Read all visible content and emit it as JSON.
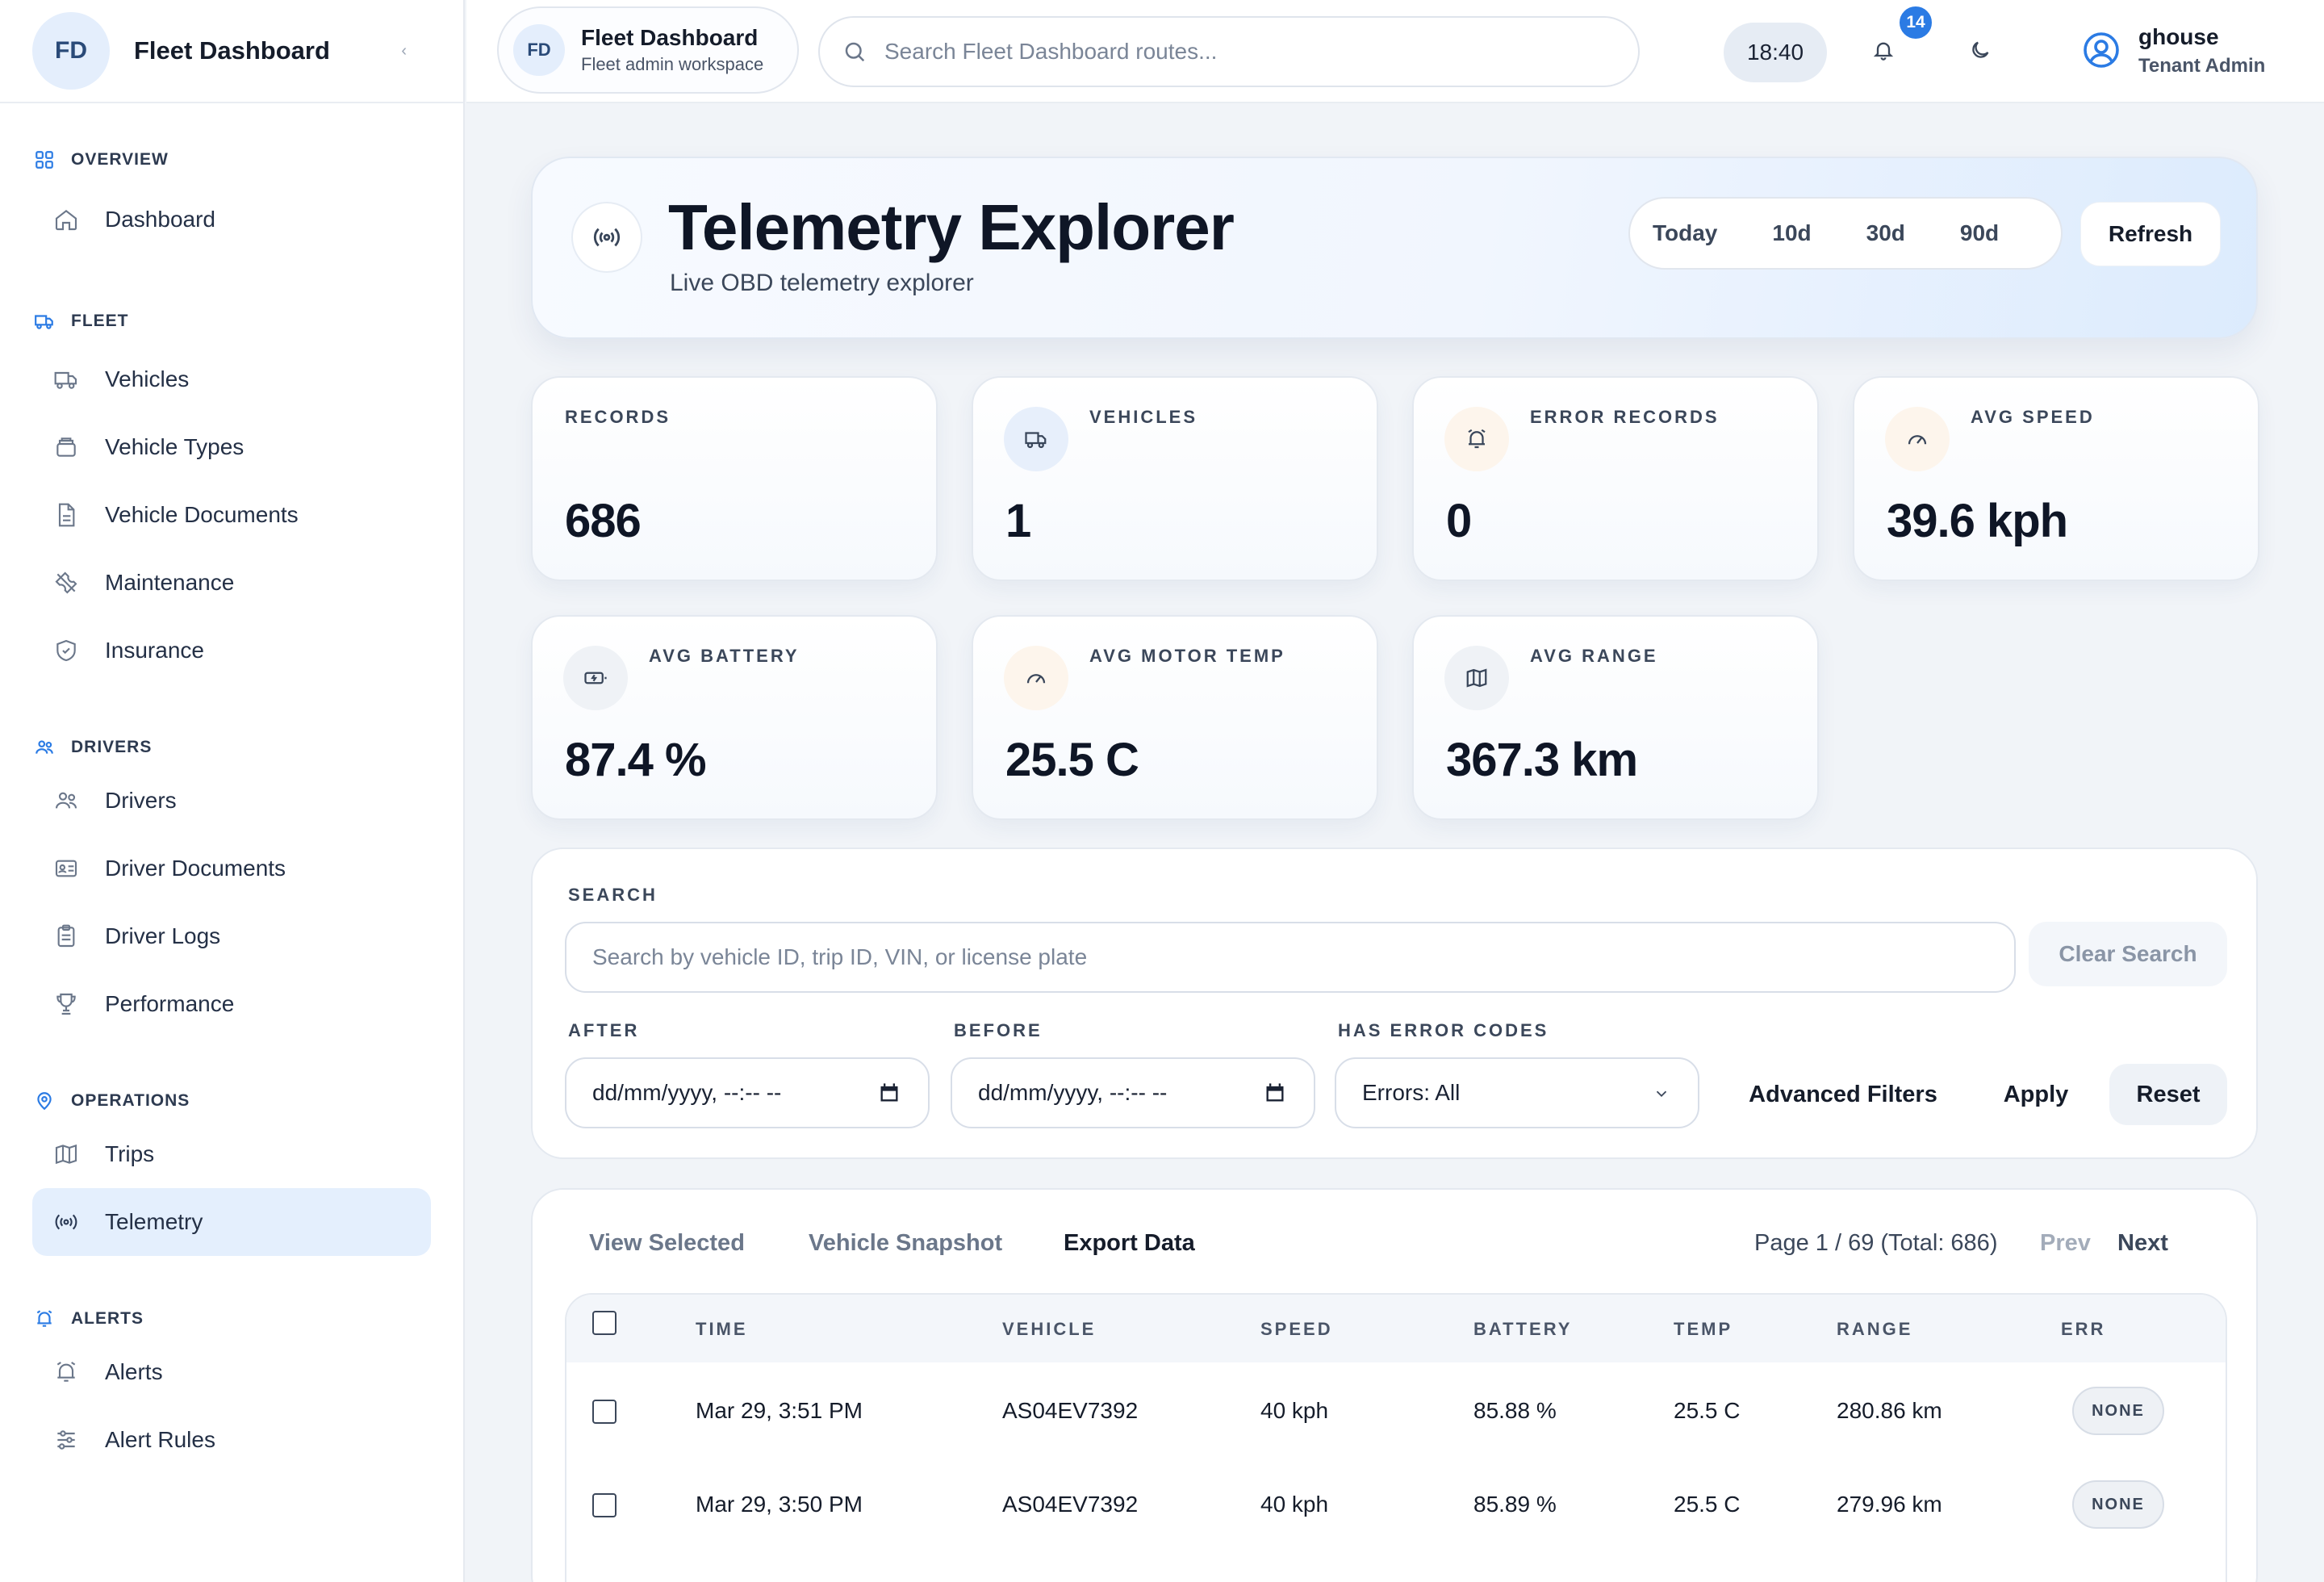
{
  "sidebar": {
    "logo": "FD",
    "title": "Fleet Dashboard",
    "collapse_icon": "chevron-left-icon",
    "sections": {
      "overview": "OVERVIEW",
      "fleet": "FLEET",
      "drivers": "DRIVERS",
      "operations": "OPERATIONS",
      "alerts": "ALERTS"
    },
    "items": {
      "dashboard": "Dashboard",
      "vehicles": "Vehicles",
      "vehicle_types": "Vehicle Types",
      "vehicle_documents": "Vehicle Documents",
      "maintenance": "Maintenance",
      "insurance": "Insurance",
      "drivers": "Drivers",
      "driver_documents": "Driver Documents",
      "driver_logs": "Driver Logs",
      "performance": "Performance",
      "trips": "Trips",
      "telemetry": "Telemetry",
      "alerts": "Alerts",
      "alert_rules": "Alert Rules"
    },
    "active": "telemetry"
  },
  "topbar": {
    "workspace_logo": "FD",
    "workspace_name": "Fleet Dashboard",
    "workspace_sub": "Fleet admin workspace",
    "search_placeholder": "Search Fleet Dashboard routes...",
    "clock": "18:40",
    "notification_count": "14",
    "user_name": "ghouse",
    "user_role": "Tenant Admin"
  },
  "hero": {
    "title": "Telemetry Explorer",
    "subtitle": "Live OBD telemetry explorer",
    "ranges": [
      "Today",
      "10d",
      "30d",
      "90d"
    ],
    "refresh_label": "Refresh"
  },
  "stats": {
    "records": {
      "label": "RECORDS",
      "value": "686"
    },
    "vehicles": {
      "label": "VEHICLES",
      "value": "1"
    },
    "error_records": {
      "label": "ERROR RECORDS",
      "value": "0"
    },
    "avg_speed": {
      "label": "AVG SPEED",
      "value": "39.6 kph"
    },
    "avg_battery": {
      "label": "AVG BATTERY",
      "value": "87.4 %"
    },
    "avg_motor_temp": {
      "label": "AVG MOTOR TEMP",
      "value": "25.5 C"
    },
    "avg_range": {
      "label": "AVG RANGE",
      "value": "367.3 km"
    }
  },
  "search_panel": {
    "search_label": "SEARCH",
    "search_placeholder": "Search by vehicle ID, trip ID, VIN, or license plate",
    "clear_label": "Clear Search",
    "after_label": "AFTER",
    "after_value": "dd/mm/yyyy, --:-- --",
    "before_label": "BEFORE",
    "before_value": "dd/mm/yyyy, --:-- --",
    "errors_label": "HAS ERROR CODES",
    "errors_value": "Errors: All",
    "advanced_label": "Advanced Filters",
    "apply_label": "Apply",
    "reset_label": "Reset"
  },
  "table": {
    "tabs": {
      "view_selected": "View Selected",
      "vehicle_snapshot": "Vehicle Snapshot",
      "export_data": "Export Data"
    },
    "page_info": "Page 1 / 69 (Total: 686)",
    "prev_label": "Prev",
    "next_label": "Next",
    "columns": {
      "time": "TIME",
      "vehicle": "VEHICLE",
      "speed": "SPEED",
      "battery": "BATTERY",
      "temp": "TEMP",
      "range": "RANGE",
      "err": "ERR"
    },
    "rows": [
      {
        "time": "Mar 29, 3:51 PM",
        "vehicle": "AS04EV7392",
        "speed": "40 kph",
        "battery": "85.88 %",
        "temp": "25.5 C",
        "range": "280.86 km",
        "err": "NONE"
      },
      {
        "time": "Mar 29, 3:50 PM",
        "vehicle": "AS04EV7392",
        "speed": "40 kph",
        "battery": "85.89 %",
        "temp": "25.5 C",
        "range": "279.96 km",
        "err": "NONE"
      }
    ]
  },
  "colors": {
    "accent": "#2b7be4",
    "active_bg": "#e4effd",
    "page_bg": "#f1f4f8"
  }
}
